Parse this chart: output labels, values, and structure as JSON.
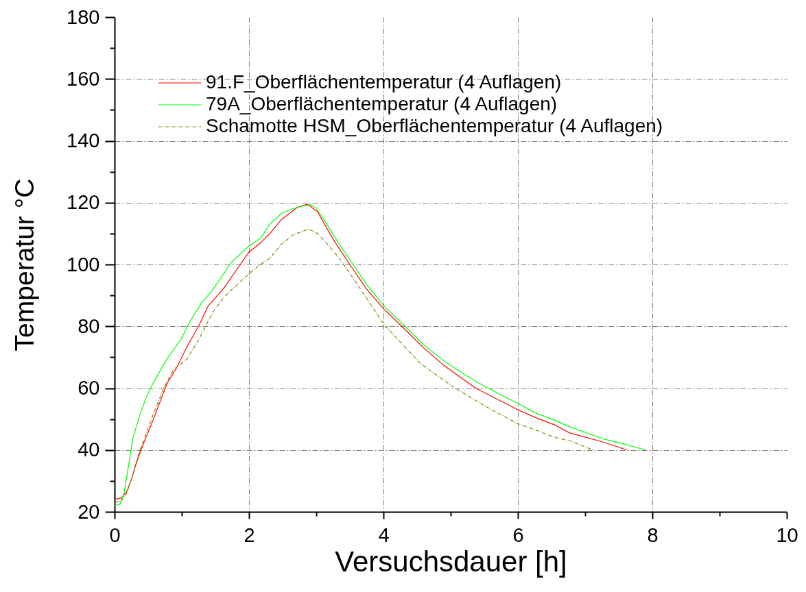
{
  "chart_data": {
    "type": "line",
    "xlabel": "Versuchsdauer [h]",
    "ylabel": "Temperatur °C",
    "xlim": [
      0,
      10
    ],
    "xticks": [
      0,
      {
        "value": 1,
        "label": null
      },
      2,
      {
        "value": 3,
        "label": null
      },
      4,
      {
        "value": 5,
        "label": null
      },
      6,
      {
        "value": 7,
        "label": null
      },
      8,
      {
        "value": 9,
        "label": null
      },
      10
    ],
    "ylim": [
      20,
      180
    ],
    "yticks": [
      20,
      {
        "value": 30,
        "label": null
      },
      40,
      {
        "value": 50,
        "label": null
      },
      60,
      {
        "value": 70,
        "label": null
      },
      80,
      {
        "value": 90,
        "label": null
      },
      100,
      {
        "value": 110,
        "label": null
      },
      120,
      {
        "value": 130,
        "label": null
      },
      140,
      {
        "value": 150,
        "label": null
      },
      160,
      {
        "value": 170,
        "label": null
      },
      180
    ],
    "grid": true,
    "legend": "top left",
    "line_style": "solid",
    "series": [
      {
        "name": "91.F_Oberflächentemperatur (4 Auflagen)",
        "color": "#ff0000",
        "x": [
          0,
          0.1,
          0.18,
          0.25,
          0.32,
          0.4,
          0.57,
          0.78,
          0.92,
          1.08,
          1.26,
          1.39,
          1.63,
          1.87,
          2.0,
          2.17,
          2.31,
          2.48,
          2.72,
          2.87,
          3.02,
          3.19,
          3.3,
          3.5,
          3.75,
          4.01,
          4.32,
          4.6,
          4.89,
          5.37,
          6.0,
          6.26,
          6.56,
          6.77,
          7.28,
          7.62
        ],
        "values": [
          24,
          24.5,
          26.5,
          30.5,
          35.5,
          40.5,
          49.5,
          61.5,
          66.5,
          73.5,
          80.5,
          86.5,
          92.5,
          100,
          104,
          107,
          110,
          114.5,
          118.5,
          119.5,
          117,
          110.5,
          106.5,
          100,
          92,
          85.5,
          79,
          73,
          67.5,
          60,
          53,
          50.5,
          48,
          45.5,
          42.5,
          40
        ]
      },
      {
        "name": "79A_Oberflächentemperatur (4 Auflagen)",
        "color": "#00ff00",
        "x": [
          0,
          0.08,
          0.14,
          0.2,
          0.27,
          0.37,
          0.47,
          0.57,
          0.78,
          0.98,
          1.12,
          1.29,
          1.43,
          1.53,
          1.73,
          2.0,
          2.17,
          2.31,
          2.48,
          2.65,
          2.82,
          2.92,
          2.99,
          3.13,
          3.3,
          3.5,
          3.75,
          4.01,
          4.32,
          4.6,
          4.89,
          5.2,
          5.51,
          6.0,
          6.26,
          6.56,
          6.77,
          7.28,
          7.6,
          7.9
        ],
        "values": [
          22,
          22.5,
          26,
          34,
          43.5,
          51,
          57,
          61.5,
          69.5,
          75.5,
          81.5,
          87.5,
          91,
          94,
          100.5,
          106,
          108.5,
          113,
          116.5,
          118,
          119,
          119.3,
          118.5,
          114,
          108,
          101.5,
          93.5,
          86.5,
          80,
          74,
          69,
          64.5,
          60.5,
          55,
          52,
          49.5,
          47.5,
          43.5,
          41.8,
          40
        ]
      },
      {
        "name": "Schamotte HSM_Oberflächentemperatur (4 Auflagen)",
        "color": "#808000",
        "line_style": "dashed",
        "x": [
          0,
          0.1,
          0.18,
          0.25,
          0.37,
          0.54,
          0.74,
          0.88,
          1.08,
          1.26,
          1.46,
          1.63,
          1.8,
          2.0,
          2.14,
          2.31,
          2.48,
          2.65,
          2.89,
          3.02,
          3.19,
          3.36,
          3.6,
          4.01,
          4.55,
          5.03,
          5.57,
          6.0,
          6.26,
          6.56,
          6.77,
          7.12
        ],
        "values": [
          23,
          23.5,
          26,
          30.5,
          39.5,
          49.5,
          60.5,
          66,
          69.5,
          76,
          84.5,
          89.5,
          93,
          97,
          99.5,
          102,
          106.5,
          109.5,
          111.5,
          110,
          106,
          101.5,
          94,
          80.5,
          68,
          60.5,
          53.5,
          48.5,
          46.5,
          44,
          43,
          40
        ]
      }
    ]
  }
}
